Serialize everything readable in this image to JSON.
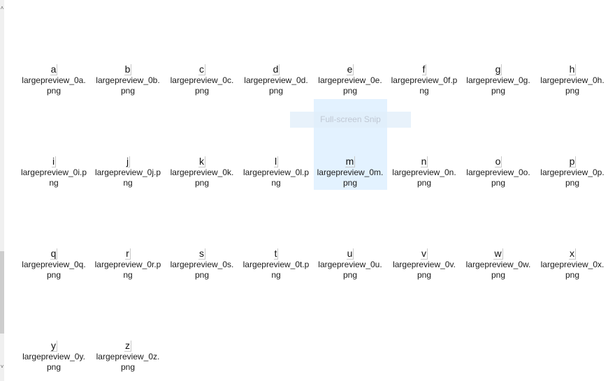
{
  "files": [
    {
      "thumb": "a",
      "name": "largepreview_0a.png",
      "l1": "largepreview_0a.",
      "l2": "png"
    },
    {
      "thumb": "b",
      "name": "largepreview_0b.png",
      "l1": "largepreview_0b.",
      "l2": "png"
    },
    {
      "thumb": "c",
      "name": "largepreview_0c.png",
      "l1": "largepreview_0c.",
      "l2": "png"
    },
    {
      "thumb": "d",
      "name": "largepreview_0d.png",
      "l1": "largepreview_0d.",
      "l2": "png"
    },
    {
      "thumb": "e",
      "name": "largepreview_0e.png",
      "l1": "largepreview_0e.",
      "l2": "png"
    },
    {
      "thumb": "f",
      "name": "largepreview_0f.png",
      "l1": "largepreview_0f.p",
      "l2": "ng"
    },
    {
      "thumb": "g",
      "name": "largepreview_0g.png",
      "l1": "largepreview_0g.",
      "l2": "png"
    },
    {
      "thumb": "h",
      "name": "largepreview_0h.png",
      "l1": "largepreview_0h.",
      "l2": "png"
    },
    {
      "thumb": "i",
      "name": "largepreview_0i.png",
      "l1": "largepreview_0i.p",
      "l2": "ng"
    },
    {
      "thumb": "j",
      "name": "largepreview_0j.png",
      "l1": "largepreview_0j.p",
      "l2": "ng"
    },
    {
      "thumb": "k",
      "name": "largepreview_0k.png",
      "l1": "largepreview_0k.",
      "l2": "png"
    },
    {
      "thumb": "l",
      "name": "largepreview_0l.png",
      "l1": "largepreview_0l.p",
      "l2": "ng"
    },
    {
      "thumb": "m",
      "name": "largepreview_0m.png",
      "l1": "largepreview_0m.",
      "l2": "png"
    },
    {
      "thumb": "n",
      "name": "largepreview_0n.png",
      "l1": "largepreview_0n.",
      "l2": "png"
    },
    {
      "thumb": "o",
      "name": "largepreview_0o.png",
      "l1": "largepreview_0o.",
      "l2": "png"
    },
    {
      "thumb": "p",
      "name": "largepreview_0p.png",
      "l1": "largepreview_0p.",
      "l2": "png"
    },
    {
      "thumb": "q",
      "name": "largepreview_0q.png",
      "l1": "largepreview_0q.",
      "l2": "png"
    },
    {
      "thumb": "r",
      "name": "largepreview_0r.png",
      "l1": "largepreview_0r.p",
      "l2": "ng"
    },
    {
      "thumb": "s",
      "name": "largepreview_0s.png",
      "l1": "largepreview_0s.",
      "l2": "png"
    },
    {
      "thumb": "t",
      "name": "largepreview_0t.png",
      "l1": "largepreview_0t.p",
      "l2": "ng"
    },
    {
      "thumb": "u",
      "name": "largepreview_0u.png",
      "l1": "largepreview_0u.",
      "l2": "png"
    },
    {
      "thumb": "v",
      "name": "largepreview_0v.png",
      "l1": "largepreview_0v.",
      "l2": "png"
    },
    {
      "thumb": "w",
      "name": "largepreview_0w.png",
      "l1": "largepreview_0w.",
      "l2": "png"
    },
    {
      "thumb": "x",
      "name": "largepreview_0x.png",
      "l1": "largepreview_0x.",
      "l2": "png"
    },
    {
      "thumb": "y",
      "name": "largepreview_0y.png",
      "l1": "largepreview_0y.",
      "l2": "png"
    },
    {
      "thumb": "z",
      "name": "largepreview_0z.png",
      "l1": "largepreview_0z.",
      "l2": "png"
    }
  ],
  "selected_file": "largepreview_0m.png",
  "snip_overlay": {
    "label": "Full-screen Snip"
  },
  "colors": {
    "selection": "#cce8ff",
    "text": "#1a1a1a",
    "background": "#ffffff"
  },
  "icons": {
    "scroll_up": "chevron-up-icon",
    "scroll_down": "chevron-down-icon"
  }
}
